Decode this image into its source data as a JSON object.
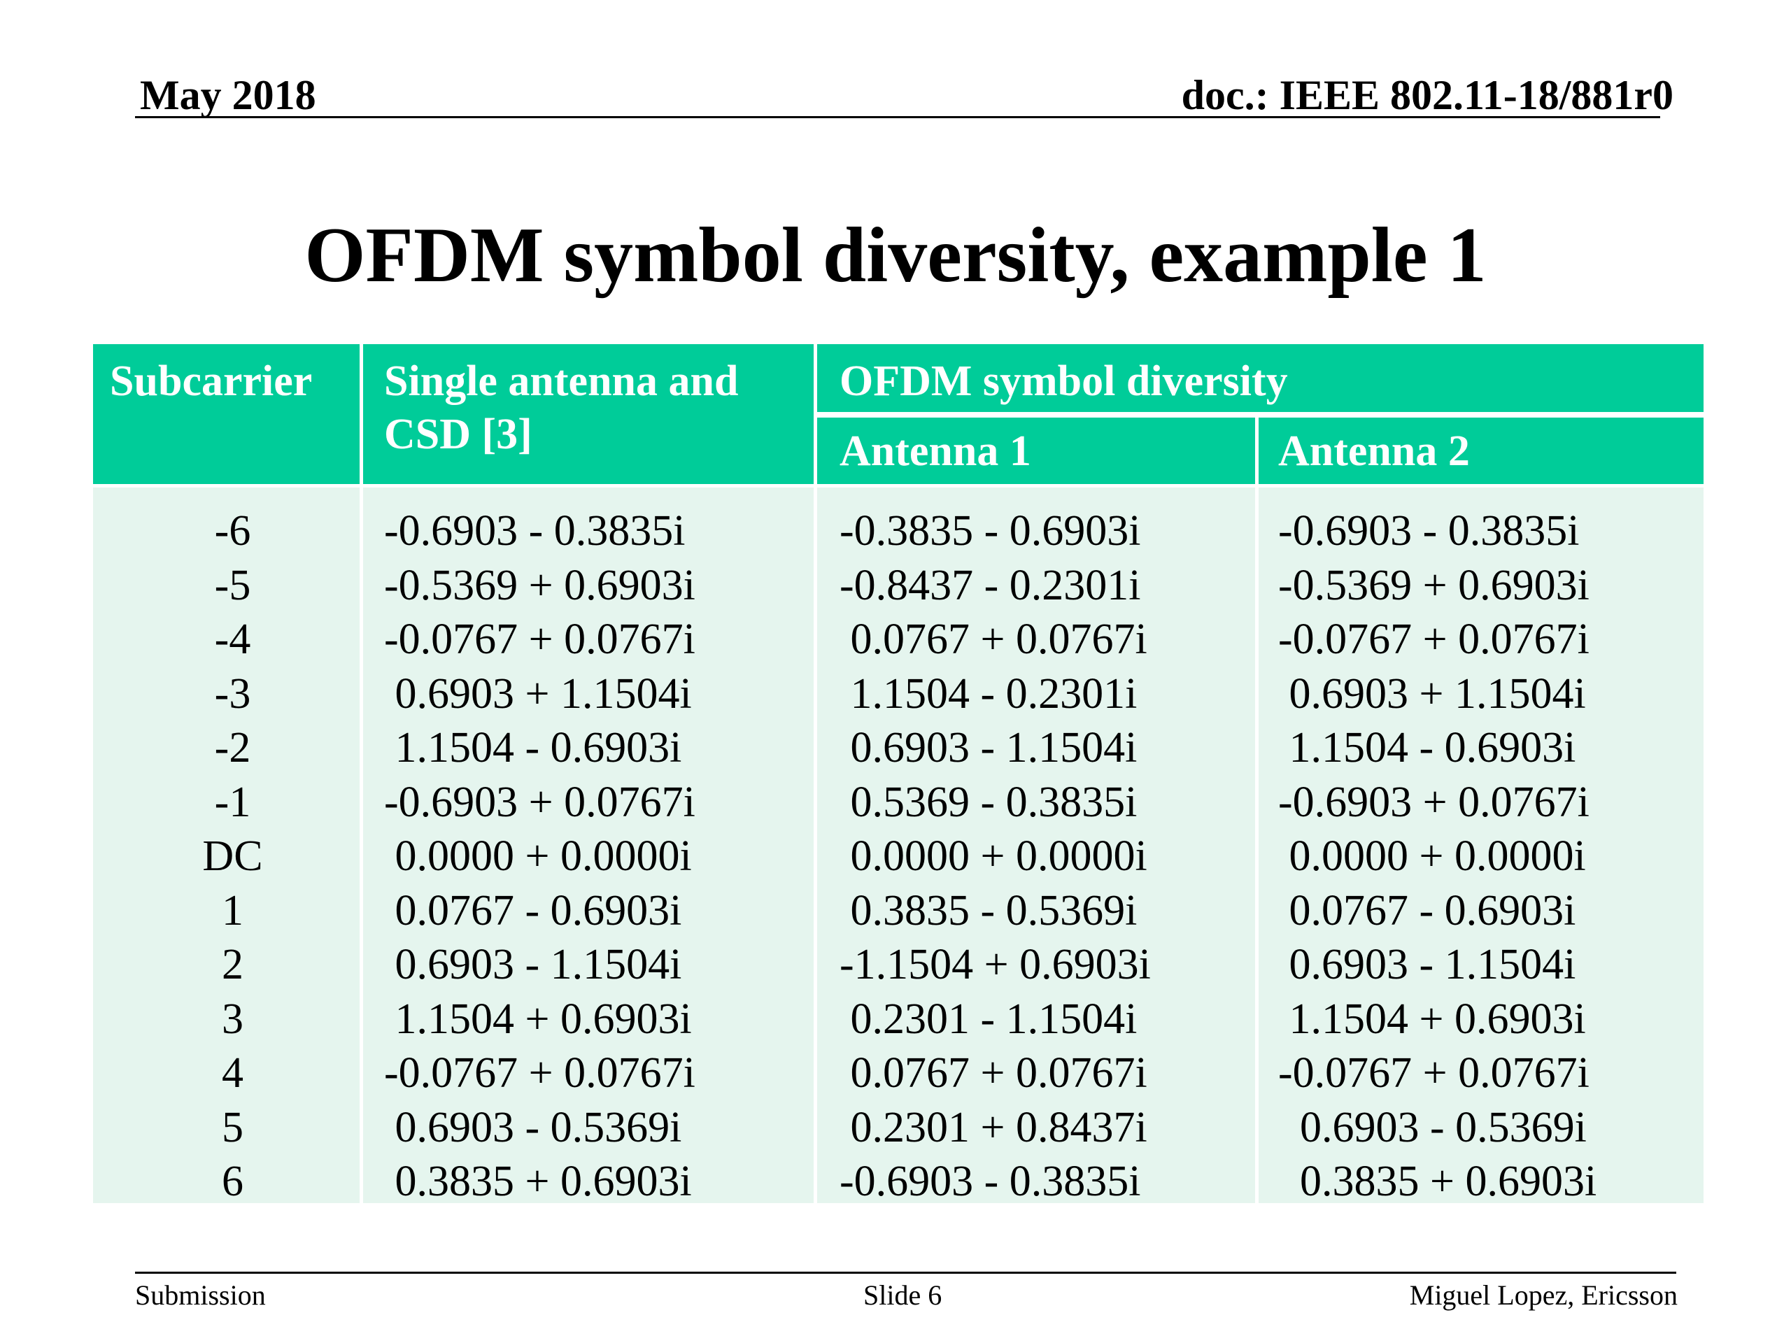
{
  "header": {
    "date": "May 2018",
    "doc": "doc.: IEEE 802.11-18/881r0"
  },
  "title": "OFDM symbol diversity, example 1",
  "table": {
    "headers": {
      "subcarrier": "Subcarrier",
      "single_line1": "Single antenna and",
      "single_line2": "CSD [3]",
      "diversity": "OFDM symbol diversity",
      "antenna1": "Antenna 1",
      "antenna2": "Antenna 2"
    },
    "colors": {
      "header_bg": "#00cc99",
      "header_text": "#ffffff",
      "body_bg": "#e5f5ee"
    },
    "subcarriers": [
      "-6",
      "-5",
      "-4",
      "-3",
      "-2",
      "-1",
      "DC",
      "1",
      "2",
      "3",
      "4",
      "5",
      "6"
    ],
    "single_antenna": [
      "-0.6903 - 0.3835i",
      "-0.5369 + 0.6903i",
      "-0.0767 + 0.0767i",
      " 0.6903 + 1.1504i",
      " 1.1504 - 0.6903i",
      "-0.6903 + 0.0767i",
      " 0.0000 + 0.0000i",
      " 0.0767 - 0.6903i",
      " 0.6903 - 1.1504i",
      " 1.1504 + 0.6903i",
      "-0.0767 + 0.0767i",
      " 0.6903 - 0.5369i",
      " 0.3835 + 0.6903i"
    ],
    "antenna1": [
      "-0.3835 - 0.6903i",
      "-0.8437 - 0.2301i",
      " 0.0767 + 0.0767i",
      " 1.1504 - 0.2301i",
      " 0.6903 - 1.1504i",
      " 0.5369 - 0.3835i",
      " 0.0000 + 0.0000i",
      " 0.3835 - 0.5369i",
      "-1.1504 + 0.6903i",
      " 0.2301 - 1.1504i",
      " 0.0767 + 0.0767i",
      " 0.2301 + 0.8437i",
      "-0.6903 - 0.3835i"
    ],
    "antenna2": [
      "-0.6903 - 0.3835i",
      "-0.5369 + 0.6903i",
      "-0.0767 + 0.0767i",
      " 0.6903 + 1.1504i",
      " 1.1504 - 0.6903i",
      "-0.6903 + 0.0767i",
      " 0.0000 + 0.0000i",
      " 0.0767 - 0.6903i",
      " 0.6903 - 1.1504i",
      " 1.1504 + 0.6903i",
      "-0.0767 + 0.0767i",
      "  0.6903 - 0.5369i",
      "  0.3835 + 0.6903i"
    ]
  },
  "footer": {
    "left": "Submission",
    "center": "Slide 6",
    "right": "Miguel Lopez, Ericsson"
  }
}
